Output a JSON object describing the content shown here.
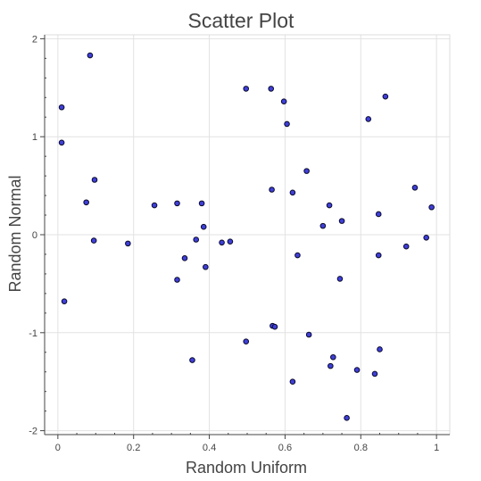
{
  "chart_data": {
    "type": "scatter",
    "title": "Scatter Plot",
    "xlabel": "Random Uniform",
    "ylabel": "Random Normal",
    "xlim": [
      -0.035,
      1.035
    ],
    "ylim": [
      -2.04,
      2.04
    ],
    "x_ticks": [
      0,
      0.2,
      0.4,
      0.6,
      0.8,
      1
    ],
    "x_tick_labels": [
      "0",
      "0.2",
      "0.4",
      "0.6",
      "0.8",
      "1"
    ],
    "y_ticks": [
      -2,
      -1,
      0,
      1,
      2
    ],
    "y_tick_labels": [
      "-2",
      "-1",
      "0",
      "1",
      "2"
    ],
    "grid": true,
    "legend": "none",
    "colors": {
      "marker_fill": "#3f3fd9",
      "marker_edge": "#0a0a2e",
      "grid": "#e2e2e2",
      "axis": "#444444"
    },
    "points": [
      {
        "x": 0.01,
        "y": 1.3
      },
      {
        "x": 0.01,
        "y": 0.94
      },
      {
        "x": 0.017,
        "y": -0.68
      },
      {
        "x": 0.085,
        "y": 1.83
      },
      {
        "x": 0.075,
        "y": 0.33
      },
      {
        "x": 0.097,
        "y": 0.56
      },
      {
        "x": 0.095,
        "y": -0.06
      },
      {
        "x": 0.185,
        "y": -0.09
      },
      {
        "x": 0.255,
        "y": 0.3
      },
      {
        "x": 0.315,
        "y": 0.32
      },
      {
        "x": 0.315,
        "y": -0.46
      },
      {
        "x": 0.335,
        "y": -0.24
      },
      {
        "x": 0.355,
        "y": -1.28
      },
      {
        "x": 0.365,
        "y": -0.05
      },
      {
        "x": 0.38,
        "y": 0.32
      },
      {
        "x": 0.385,
        "y": 0.08
      },
      {
        "x": 0.39,
        "y": -0.33
      },
      {
        "x": 0.433,
        "y": -0.08
      },
      {
        "x": 0.455,
        "y": -0.07
      },
      {
        "x": 0.497,
        "y": 1.49
      },
      {
        "x": 0.497,
        "y": -1.09
      },
      {
        "x": 0.563,
        "y": 1.49
      },
      {
        "x": 0.565,
        "y": 0.46
      },
      {
        "x": 0.567,
        "y": -0.93
      },
      {
        "x": 0.573,
        "y": -0.94
      },
      {
        "x": 0.597,
        "y": 1.36
      },
      {
        "x": 0.605,
        "y": 1.13
      },
      {
        "x": 0.62,
        "y": 0.43
      },
      {
        "x": 0.62,
        "y": -1.5
      },
      {
        "x": 0.633,
        "y": -0.21
      },
      {
        "x": 0.657,
        "y": 0.65
      },
      {
        "x": 0.663,
        "y": -1.02
      },
      {
        "x": 0.7,
        "y": 0.09
      },
      {
        "x": 0.717,
        "y": 0.3
      },
      {
        "x": 0.72,
        "y": -1.34
      },
      {
        "x": 0.727,
        "y": -1.25
      },
      {
        "x": 0.745,
        "y": -0.45
      },
      {
        "x": 0.75,
        "y": 0.14
      },
      {
        "x": 0.763,
        "y": -1.87
      },
      {
        "x": 0.79,
        "y": -1.38
      },
      {
        "x": 0.82,
        "y": 1.18
      },
      {
        "x": 0.837,
        "y": -1.42
      },
      {
        "x": 0.847,
        "y": 0.21
      },
      {
        "x": 0.847,
        "y": -0.21
      },
      {
        "x": 0.85,
        "y": -1.17
      },
      {
        "x": 0.865,
        "y": 1.41
      },
      {
        "x": 0.92,
        "y": -0.12
      },
      {
        "x": 0.943,
        "y": 0.48
      },
      {
        "x": 0.973,
        "y": -0.03
      },
      {
        "x": 0.987,
        "y": 0.28
      }
    ]
  }
}
